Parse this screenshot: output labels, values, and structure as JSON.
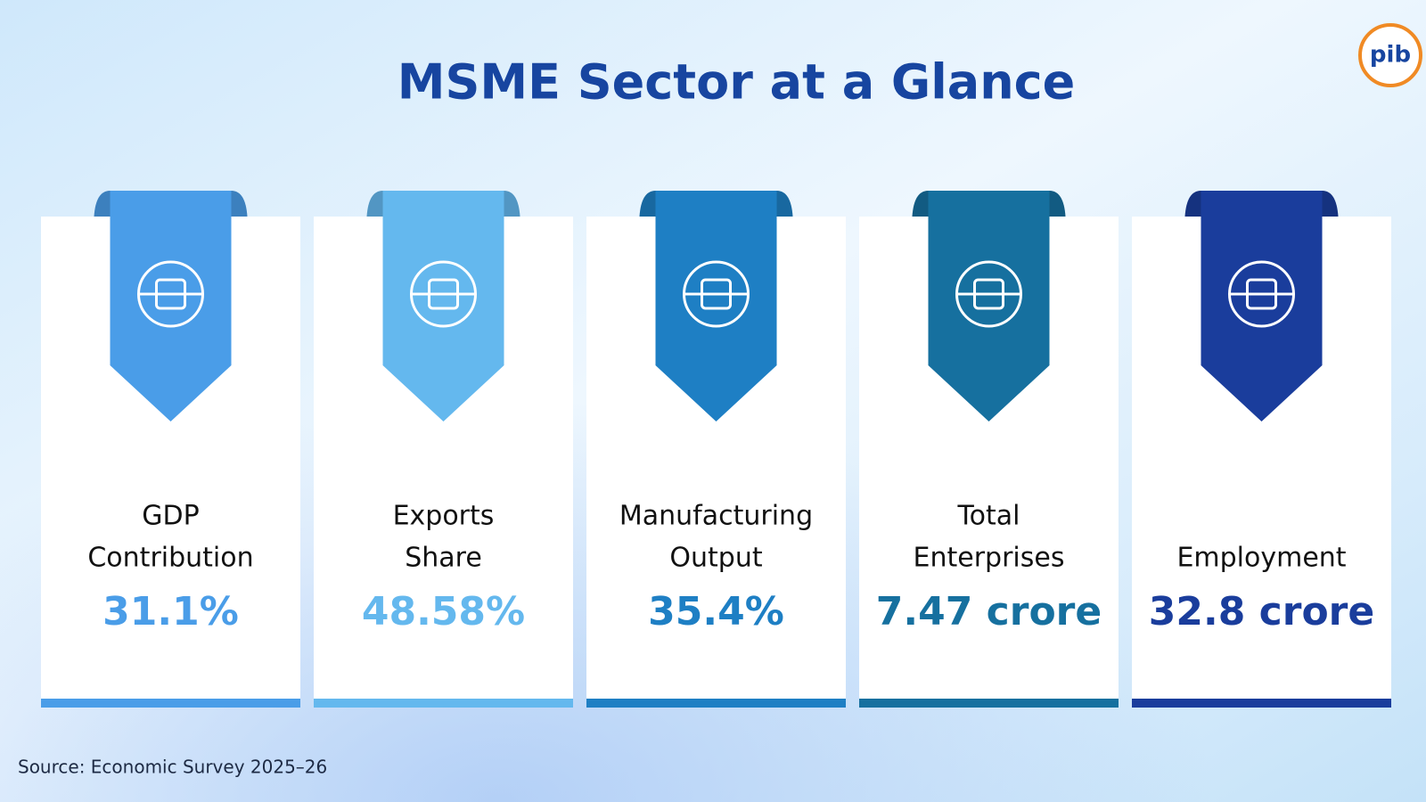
{
  "header": {
    "title": "MSME Sector at a Glance",
    "logo": "pib"
  },
  "cards": [
    {
      "label": [
        "GDP",
        "Contribution"
      ],
      "value": "31.1%",
      "color": "#4a9de8"
    },
    {
      "label": [
        "Exports",
        "Share"
      ],
      "value": "48.58%",
      "color": "#64b8ee"
    },
    {
      "label": [
        "Manufacturing",
        "Output"
      ],
      "value": "35.4%",
      "color": "#1e7fc4"
    },
    {
      "label": [
        "Total",
        "Enterprises"
      ],
      "value": "7.47 crore",
      "color": "#16709f"
    },
    {
      "label": [
        "Employment"
      ],
      "value": "32.8 crore",
      "color": "#1a3d9c"
    }
  ],
  "footer": {
    "source": "Source: Economic Survey 2025–26"
  }
}
